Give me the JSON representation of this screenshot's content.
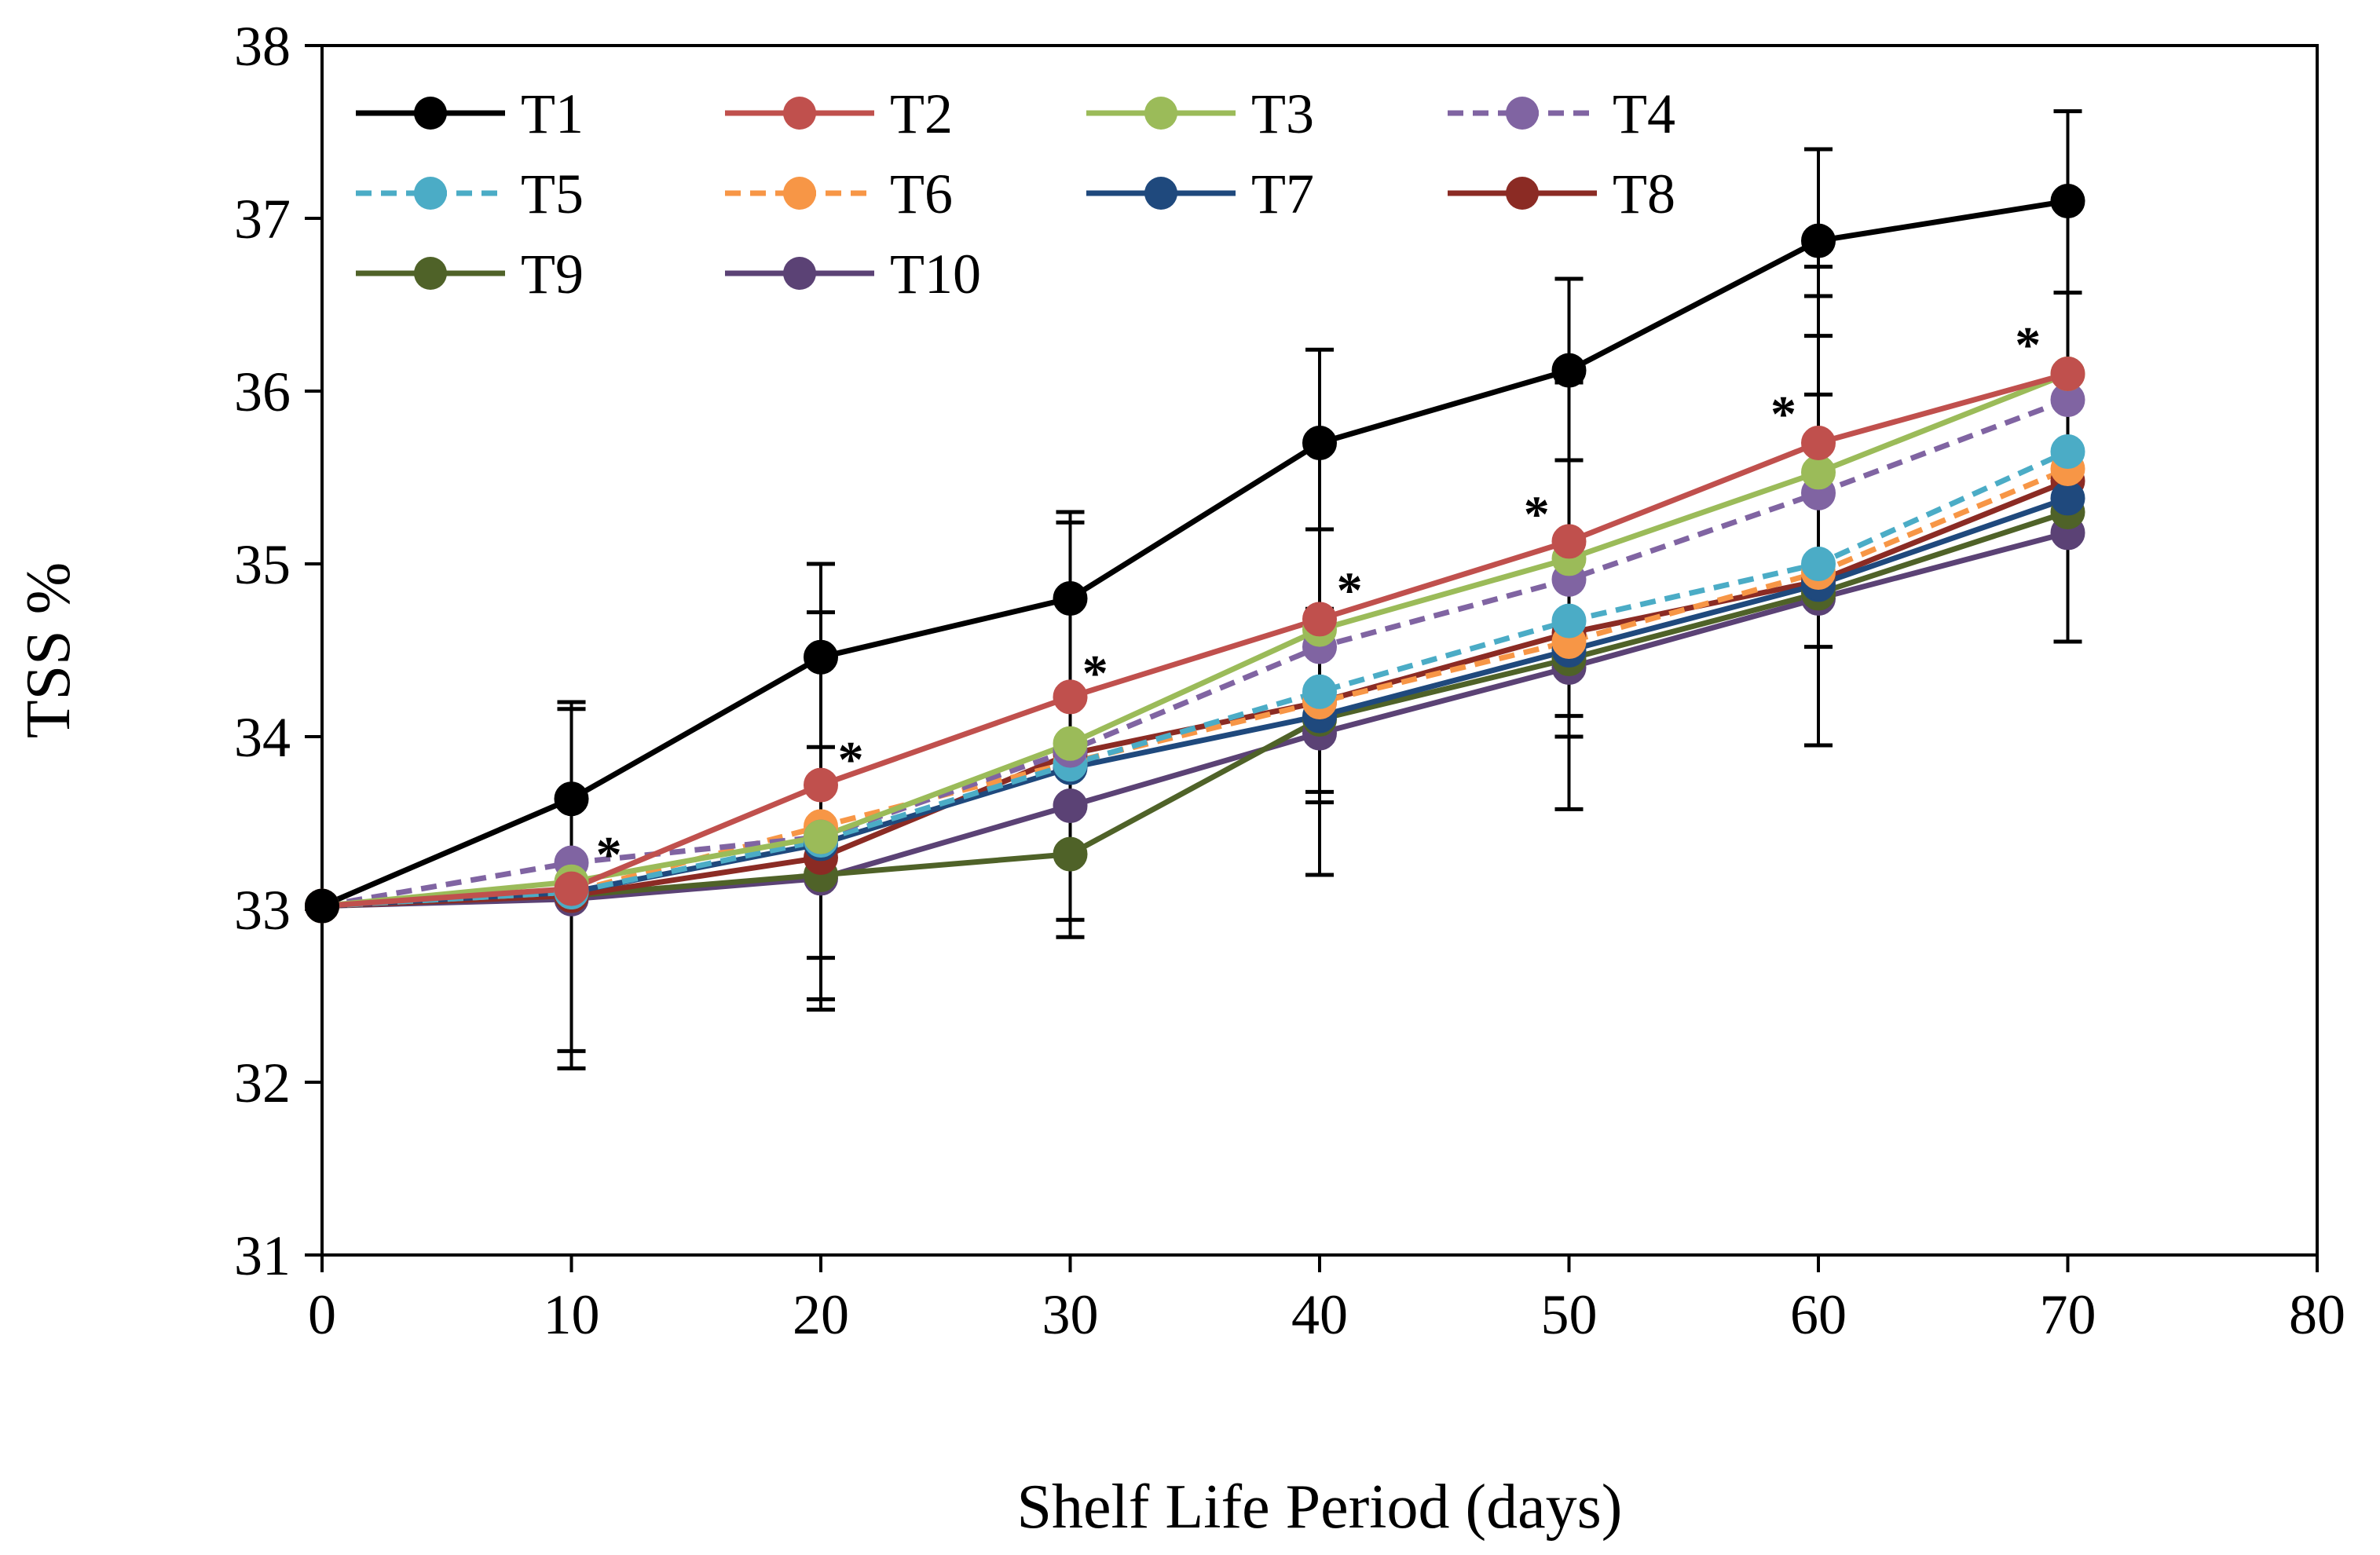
{
  "chart_data": {
    "type": "line",
    "title": "",
    "xlabel": "Shelf Life Period (days)",
    "ylabel": "TSS %",
    "xlim": [
      0,
      80
    ],
    "ylim": [
      31,
      38
    ],
    "xticks": [
      0,
      10,
      20,
      30,
      40,
      50,
      60,
      70,
      80
    ],
    "yticks": [
      31,
      32,
      33,
      34,
      35,
      36,
      37,
      38
    ],
    "grid": false,
    "legend_position": "top-left",
    "x": [
      0,
      10,
      20,
      30,
      40,
      50,
      60,
      70
    ],
    "series": [
      {
        "name": "T1",
        "color": "#000000",
        "dashed": false,
        "marker_color": "#000000",
        "values": [
          33.02,
          33.64,
          34.46,
          34.8,
          35.7,
          36.12,
          36.87,
          37.1
        ]
      },
      {
        "name": "T2",
        "color": "#c0504d",
        "dashed": false,
        "marker_color": "#c0504d",
        "values": [
          33.02,
          33.12,
          33.72,
          34.23,
          34.68,
          35.13,
          35.7,
          36.1
        ]
      },
      {
        "name": "T3",
        "color": "#9bbb59",
        "dashed": false,
        "marker_color": "#9bbb59",
        "values": [
          33.02,
          33.16,
          33.42,
          33.96,
          34.62,
          35.03,
          35.53,
          36.1
        ]
      },
      {
        "name": "T4",
        "color": "#8064a2",
        "dashed": true,
        "marker_color": "#8064a2",
        "values": [
          33.02,
          33.27,
          33.42,
          33.92,
          34.52,
          34.91,
          35.41,
          35.95
        ]
      },
      {
        "name": "T5",
        "color": "#4bacc6",
        "dashed": true,
        "marker_color": "#4bacc6",
        "values": [
          33.02,
          33.1,
          33.4,
          33.84,
          34.26,
          34.67,
          35.0,
          35.65
        ]
      },
      {
        "name": "T6",
        "color": "#f79646",
        "dashed": true,
        "marker_color": "#f79646",
        "values": [
          33.02,
          33.1,
          33.48,
          33.85,
          34.2,
          34.55,
          34.95,
          35.55
        ]
      },
      {
        "name": "T7",
        "color": "#1f497d",
        "dashed": false,
        "marker_color": "#1f497d",
        "values": [
          33.02,
          33.1,
          33.38,
          33.82,
          34.12,
          34.5,
          34.88,
          35.38
        ]
      },
      {
        "name": "T8",
        "color": "#8b2b24",
        "dashed": false,
        "marker_color": "#8b2b24",
        "values": [
          33.02,
          33.08,
          33.3,
          33.9,
          34.2,
          34.6,
          34.9,
          35.48
        ]
      },
      {
        "name": "T9",
        "color": "#4f6228",
        "dashed": false,
        "marker_color": "#4f6228",
        "values": [
          33.02,
          33.08,
          33.2,
          33.32,
          34.1,
          34.45,
          34.83,
          35.3
        ]
      },
      {
        "name": "T10",
        "color": "#5b4275",
        "dashed": false,
        "marker_color": "#5b4275",
        "values": [
          33.02,
          33.06,
          33.18,
          33.6,
          34.02,
          34.4,
          34.8,
          35.18
        ]
      }
    ],
    "error_bars": [
      {
        "x": 10,
        "lows": [
          32.08,
          32.18
        ],
        "highs": [
          34.2,
          34.16
        ]
      },
      {
        "x": 20,
        "lows": [
          32.42,
          32.48,
          32.72
        ],
        "highs": [
          35.0,
          34.72,
          33.94
        ]
      },
      {
        "x": 30,
        "lows": [
          32.84,
          32.94
        ],
        "highs": [
          35.3,
          35.24
        ]
      },
      {
        "x": 40,
        "lows": [
          33.2,
          33.62,
          33.68
        ],
        "highs": [
          36.24,
          35.2,
          34.74
        ]
      },
      {
        "x": 50,
        "lows": [
          33.58,
          34.0,
          34.12
        ],
        "highs": [
          36.65,
          36.05,
          35.6
        ]
      },
      {
        "x": 60,
        "lows": [
          33.95,
          34.52
        ],
        "highs": [
          37.4,
          36.72,
          36.55,
          36.32,
          35.98
        ]
      },
      {
        "x": 70,
        "lows": [
          34.55
        ],
        "highs": [
          37.62,
          36.57
        ]
      }
    ],
    "annotations": [
      {
        "text": "*",
        "x": 11.5,
        "y": 33.4
      },
      {
        "text": "*",
        "x": 21.2,
        "y": 33.95
      },
      {
        "text": "*",
        "x": 31.0,
        "y": 34.45
      },
      {
        "text": "*",
        "x": 41.2,
        "y": 34.93
      },
      {
        "text": "*",
        "x": 48.7,
        "y": 35.37
      },
      {
        "text": "*",
        "x": 58.6,
        "y": 35.95
      },
      {
        "text": "*",
        "x": 68.4,
        "y": 36.35
      }
    ]
  }
}
